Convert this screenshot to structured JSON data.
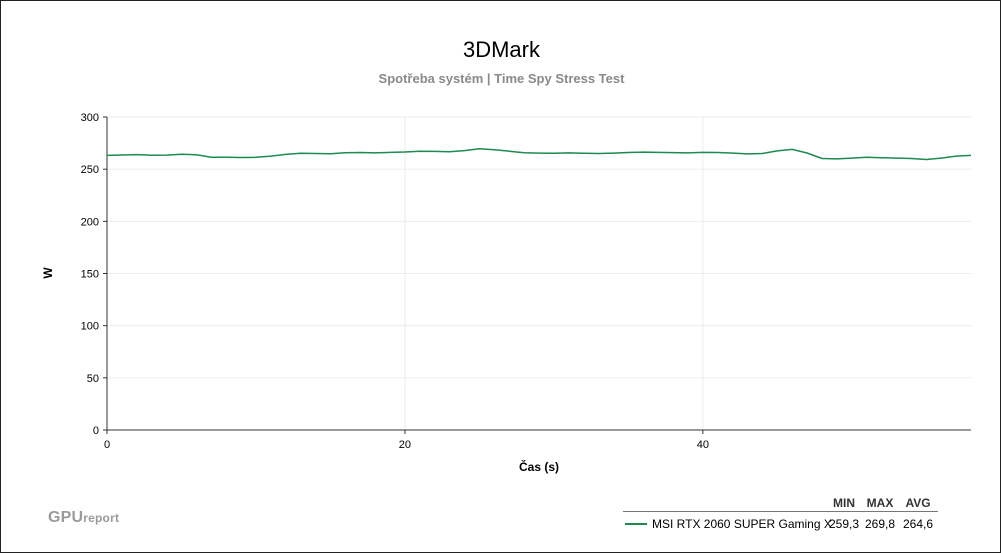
{
  "chart_data": {
    "type": "line",
    "title": "3DMark",
    "subtitle": "Spotřeba systém | Time Spy Stress Test",
    "xlabel": "Čas (s)",
    "ylabel": "W",
    "xlim": [
      0,
      58
    ],
    "ylim": [
      0,
      300
    ],
    "xticks": [
      0,
      20,
      40
    ],
    "yticks": [
      0,
      50,
      100,
      150,
      200,
      250,
      300
    ],
    "grid": true,
    "legend_position": "bottom-right",
    "series": [
      {
        "name": "MSI RTX 2060 SUPER Gaming X",
        "color": "#1e8a4f",
        "stats": {
          "min": "259,3",
          "max": "269,8",
          "avg": "264,6"
        },
        "x": [
          0,
          1,
          2,
          3,
          4,
          5,
          6,
          7,
          8,
          9,
          10,
          11,
          12,
          13,
          14,
          15,
          16,
          17,
          18,
          19,
          20,
          21,
          22,
          23,
          24,
          25,
          26,
          27,
          28,
          29,
          30,
          31,
          32,
          33,
          34,
          35,
          36,
          37,
          38,
          39,
          40,
          41,
          42,
          43,
          44,
          45,
          46,
          47,
          48,
          49,
          50,
          51,
          52,
          53,
          54,
          55,
          56,
          57,
          58
        ],
        "y": [
          263.2,
          263.6,
          264.0,
          263.4,
          263.5,
          264.3,
          263.8,
          261.5,
          261.4,
          261.2,
          261.4,
          262.5,
          264.2,
          265.3,
          265.0,
          264.8,
          265.8,
          266.0,
          265.6,
          266.1,
          266.5,
          267.2,
          267.0,
          266.7,
          267.8,
          269.5,
          268.6,
          267.2,
          265.8,
          265.4,
          265.2,
          265.6,
          265.2,
          265.0,
          265.4,
          266.0,
          266.4,
          266.1,
          265.9,
          265.6,
          266.1,
          266.0,
          265.4,
          264.6,
          265.0,
          267.5,
          268.9,
          265.5,
          260.2,
          259.8,
          260.6,
          261.4,
          261.0,
          260.6,
          260.2,
          259.3,
          260.6,
          262.5,
          263.2
        ]
      }
    ]
  },
  "legend": {
    "headers": [
      "MIN",
      "MAX",
      "AVG"
    ]
  },
  "brand": {
    "logo_main": "GPU",
    "logo_sub": "report"
  }
}
